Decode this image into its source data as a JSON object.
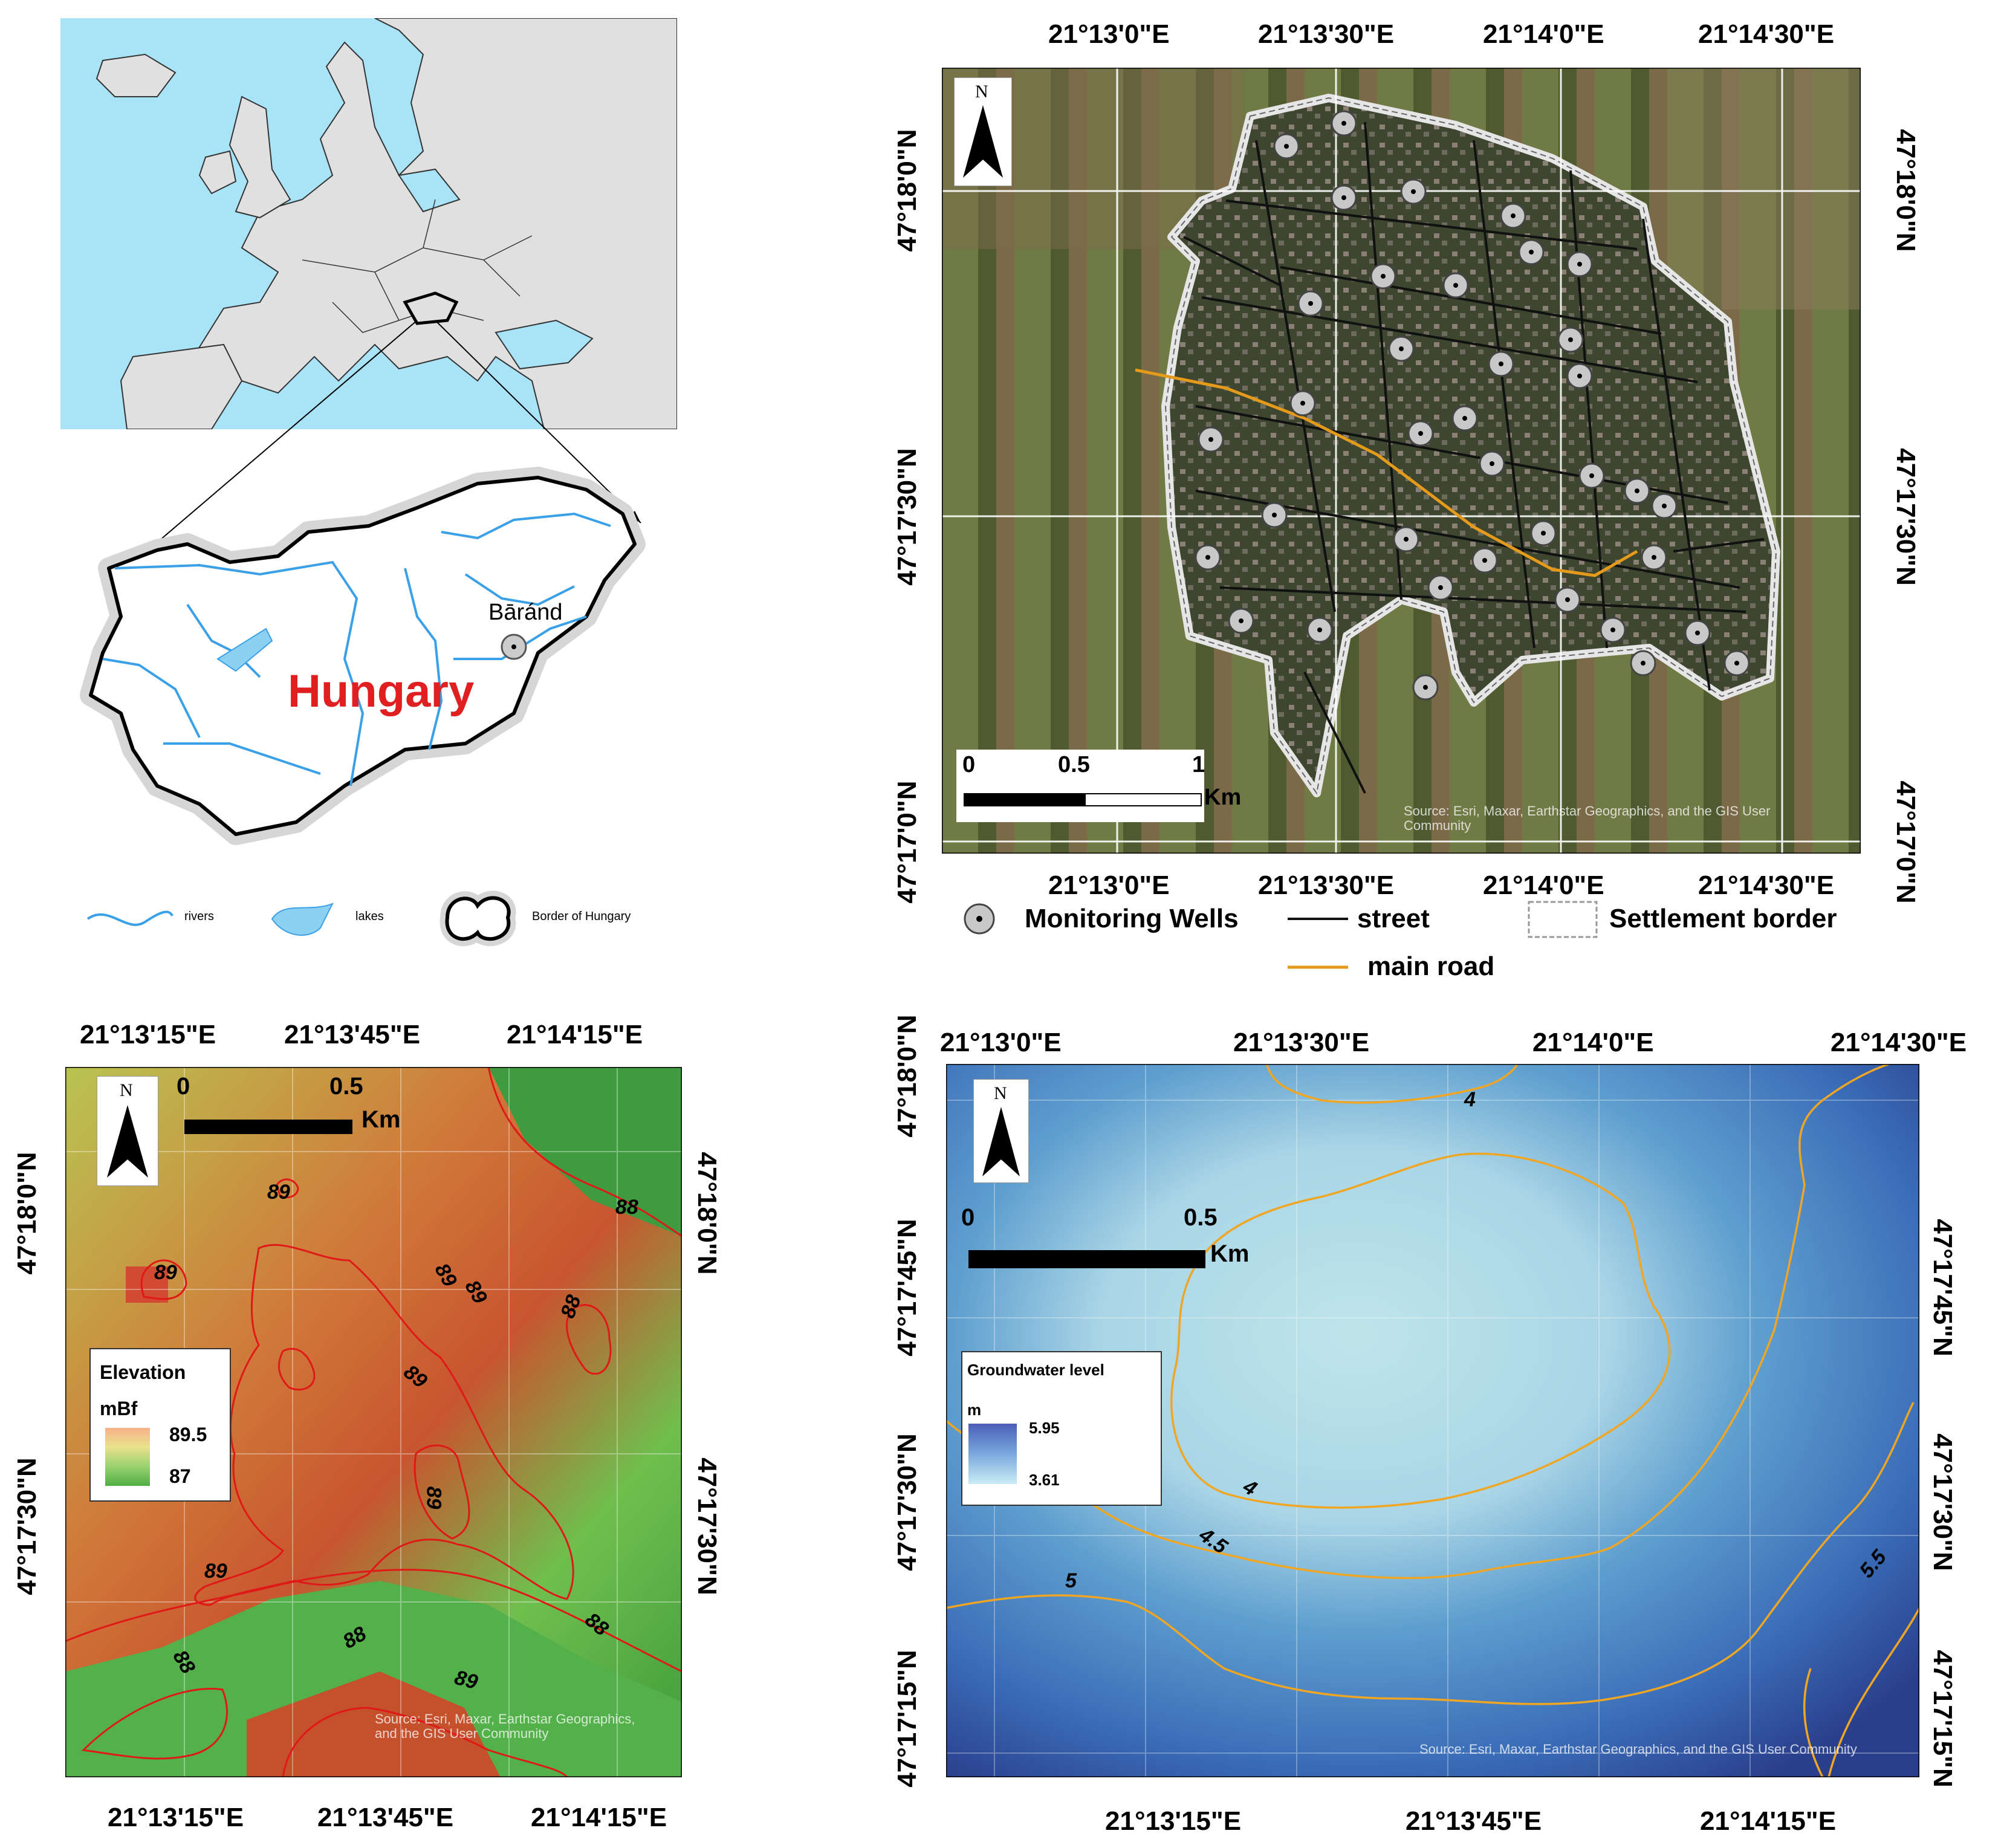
{
  "panel_a": {
    "place_label": "Bāránd",
    "country_label": "Hungary",
    "legend": {
      "rivers": "rivers",
      "lakes": "lakes",
      "border": "Border of Hungary"
    },
    "colors": {
      "sea": "#a8e3f7",
      "land": "#e0e0e0",
      "river": "#3aa0e8",
      "country_label": "#e02020"
    }
  },
  "panel_b": {
    "top_lon": [
      "21°13'0\"E",
      "21°13'30\"E",
      "21°14'0\"E",
      "21°14'30\"E"
    ],
    "bottom_lon": [
      "21°13'0\"E",
      "21°13'30\"E",
      "21°14'0\"E",
      "21°14'30\"E"
    ],
    "left_lat": [
      "47°18'0\"N",
      "47°17'30\"N",
      "47°17'0\"N"
    ],
    "right_lat": [
      "47°18'0\"N",
      "47°17'30\"N",
      "47°17'0\"N"
    ],
    "north": "N",
    "scale": {
      "t0": "0",
      "t1": "0.5",
      "t2": "1",
      "unit": "Km"
    },
    "source": "Source: Esri, Maxar, Earthstar Geographics, and the GIS User Community",
    "legend": {
      "wells": "Monitoring Wells",
      "street": "street",
      "border": "Settlement border",
      "road": "main road"
    },
    "colors": {
      "road": "#e59a1c",
      "street": "#111111",
      "border": "#e6e6e6"
    }
  },
  "panel_c": {
    "top_lon": [
      "21°13'15\"E",
      "21°13'45\"E",
      "21°14'15\"E"
    ],
    "bottom_lon": [
      "21°13'15\"E",
      "21°13'45\"E",
      "21°14'15\"E"
    ],
    "left_lat": [
      "47°18'0\"N",
      "47°17'30\"N"
    ],
    "right_lat": [
      "47°18'0\"N",
      "47°17'30\"N"
    ],
    "north": "N",
    "scale": {
      "t0": "0",
      "t1": "0.5",
      "unit": "Km"
    },
    "legend": {
      "title": "Elevation",
      "unit": "mBf",
      "max": "89.5",
      "min": "87"
    },
    "contour_labels": [
      "89",
      "88",
      "89",
      "89",
      "89",
      "88",
      "89",
      "89",
      "89",
      "88",
      "88",
      "88",
      "89"
    ],
    "source": "Source: Esri, Maxar, Earthstar Geographics, and the GIS User Community",
    "colors": {
      "contour": "#e01818"
    }
  },
  "panel_d": {
    "top_lon": [
      "21°13'0\"E",
      "21°13'30\"E",
      "21°14'0\"E",
      "21°14'30\"E"
    ],
    "bottom_lon": [
      "21°13'15\"E",
      "21°13'45\"E",
      "21°14'15\"E"
    ],
    "left_lat": [
      "47°18'0\"N",
      "47°17'45\"N",
      "47°17'30\"N",
      "47°17'15\"N"
    ],
    "right_lat": [
      "47°17'45\"N",
      "47°17'30\"N",
      "47°17'15\"N"
    ],
    "north": "N",
    "scale": {
      "t0": "0",
      "t1": "0.5",
      "unit": "Km"
    },
    "legend": {
      "title": "Groundwater level",
      "unit": "m",
      "max": "5.95",
      "min": "3.61"
    },
    "contour_labels": [
      "4",
      "4",
      "4.5",
      "5",
      "5.5"
    ],
    "source": "Source: Esri, Maxar, Earthstar Geographics, and the GIS User Community",
    "colors": {
      "contour": "#f0a623"
    }
  }
}
